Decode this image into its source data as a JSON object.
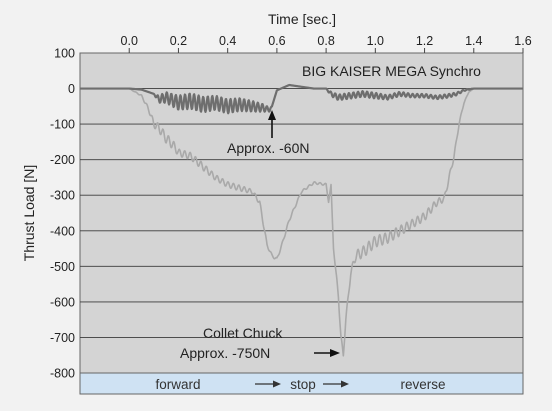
{
  "chart_data": {
    "type": "line",
    "xlabel": "Time [sec.]",
    "ylabel": "Thrust Load [N]",
    "xlim": [
      -0.2,
      1.6
    ],
    "ylim": [
      -800,
      100
    ],
    "x_ticks": [
      "0.0",
      "0.2",
      "0.4",
      "0.6",
      "0.8",
      "1.0",
      "1.2",
      "1.4",
      "1.6"
    ],
    "y_ticks": [
      "100",
      "0",
      "-100",
      "-200",
      "-300",
      "-400",
      "-500",
      "-600",
      "-700",
      "-800"
    ],
    "grid": "horizontal",
    "series": [
      {
        "name": "BIG KAISER MEGA Synchro",
        "color": "#6e6e6e",
        "x": [
          -0.2,
          0.0,
          0.05,
          0.1,
          0.12,
          0.15,
          0.2,
          0.25,
          0.3,
          0.35,
          0.4,
          0.45,
          0.5,
          0.55,
          0.57,
          0.58,
          0.6,
          0.65,
          0.7,
          0.75,
          0.8,
          0.82,
          0.85,
          0.9,
          0.95,
          1.0,
          1.05,
          1.1,
          1.15,
          1.2,
          1.25,
          1.3,
          1.33,
          1.36,
          1.4,
          1.5,
          1.6
        ],
        "y": [
          0,
          0,
          -3,
          -15,
          -30,
          -25,
          -40,
          -35,
          -45,
          -40,
          -50,
          -45,
          -50,
          -55,
          -60,
          -50,
          -5,
          10,
          5,
          0,
          0,
          -15,
          -25,
          -20,
          -15,
          -20,
          -25,
          -15,
          -20,
          -20,
          -25,
          -20,
          -15,
          -5,
          0,
          0,
          0
        ],
        "oscillation_amplitude": [
          0,
          0,
          0,
          0,
          10,
          15,
          20,
          22,
          22,
          20,
          20,
          18,
          15,
          10,
          5,
          0,
          0,
          0,
          0,
          0,
          0,
          6,
          8,
          8,
          8,
          8,
          6,
          6,
          5,
          5,
          5,
          5,
          4,
          2,
          0,
          0,
          0
        ]
      },
      {
        "name": "Collet Chuck",
        "color": "#a9a9a9",
        "x": [
          -0.2,
          0.0,
          0.05,
          0.08,
          0.1,
          0.12,
          0.15,
          0.18,
          0.2,
          0.25,
          0.3,
          0.35,
          0.4,
          0.45,
          0.5,
          0.53,
          0.55,
          0.56,
          0.58,
          0.6,
          0.62,
          0.65,
          0.7,
          0.75,
          0.8,
          0.81,
          0.82,
          0.83,
          0.84,
          0.85,
          0.86,
          0.87,
          0.88,
          0.9,
          0.92,
          0.95,
          1.0,
          1.05,
          1.1,
          1.15,
          1.2,
          1.25,
          1.28,
          1.3,
          1.32,
          1.34,
          1.36,
          1.38,
          1.4,
          1.5,
          1.6
        ],
        "y": [
          0,
          0,
          -20,
          -60,
          -100,
          -110,
          -140,
          -160,
          -180,
          -190,
          -220,
          -250,
          -270,
          -280,
          -290,
          -320,
          -400,
          -440,
          -470,
          -480,
          -440,
          -370,
          -290,
          -265,
          -270,
          -320,
          -270,
          -450,
          -520,
          -580,
          -700,
          -750,
          -650,
          -520,
          -470,
          -460,
          -430,
          -420,
          -400,
          -380,
          -360,
          -320,
          -310,
          -250,
          -190,
          -100,
          -40,
          -10,
          0,
          0,
          0
        ],
        "oscillation_amplitude": [
          0,
          0,
          2,
          6,
          10,
          12,
          14,
          12,
          10,
          10,
          10,
          8,
          8,
          8,
          6,
          6,
          6,
          4,
          4,
          4,
          4,
          4,
          3,
          3,
          3,
          0,
          0,
          0,
          6,
          10,
          8,
          6,
          6,
          8,
          14,
          16,
          16,
          15,
          14,
          12,
          12,
          10,
          8,
          8,
          6,
          4,
          2,
          0,
          0,
          0,
          0
        ]
      }
    ],
    "annotations": {
      "legend_top": "BIG KAISER MEGA Synchro",
      "approx_60": "Approx. -60N",
      "collet_name": "Collet Chuck",
      "approx_750": "Approx. -750N"
    },
    "band": {
      "forward": "forward",
      "stop": "stop",
      "reverse": "reverse",
      "color": "#cfe2f3"
    }
  }
}
